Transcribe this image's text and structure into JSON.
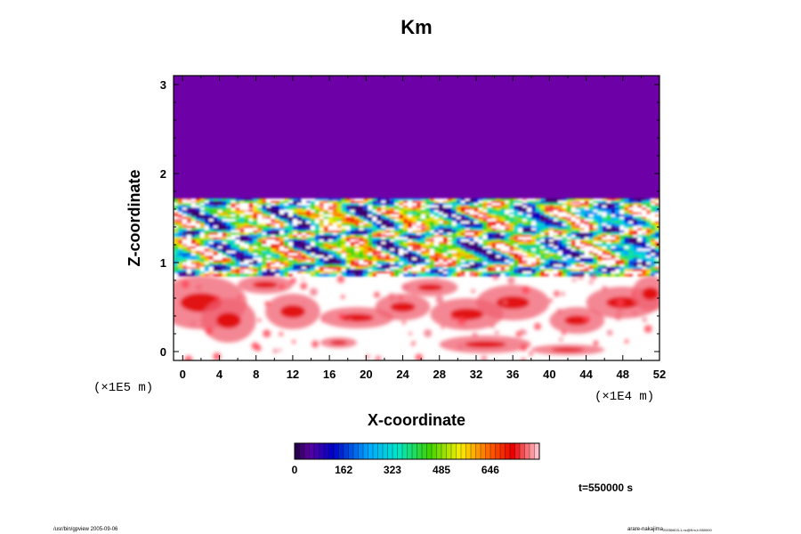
{
  "chart_data": {
    "type": "heatmap",
    "title": "Km",
    "xlabel": "X-coordinate",
    "ylabel": "Z-coordinate",
    "x_scale_label": "(×1E4 m)",
    "y_scale_label": "(×1E5 m)",
    "xlim": [
      -1,
      52
    ],
    "ylim": [
      -0.1,
      3.1
    ],
    "x_ticks": [
      0,
      4,
      8,
      12,
      16,
      20,
      24,
      28,
      32,
      36,
      40,
      44,
      48,
      52
    ],
    "x_tick_labels": [
      "0",
      "4",
      "8",
      "12",
      "16",
      "20",
      "24",
      "28",
      "32",
      "36",
      "40",
      "44",
      "48",
      "52"
    ],
    "y_ticks": [
      0,
      1,
      2,
      3
    ],
    "y_tick_labels": [
      "0",
      "1",
      "2",
      "3"
    ],
    "colorbar": {
      "min": 0,
      "max": 808,
      "ticks": [
        0,
        162,
        323,
        485,
        646
      ],
      "tick_labels": [
        "0",
        "162",
        "323",
        "485",
        "646"
      ],
      "colormap": "rainbow"
    },
    "regions": [
      {
        "name": "upper",
        "z_range": [
          1.72,
          3.1
        ],
        "value_desc": "uniform minimum (0)"
      },
      {
        "name": "turbulent_layer",
        "z_range": [
          0.85,
          1.72
        ],
        "value_desc": "highly variable 0-808"
      },
      {
        "name": "lower",
        "z_range": [
          -0.1,
          0.85
        ],
        "value_desc": "mostly white with scattered red patches (~650-808)"
      }
    ]
  },
  "annotations": {
    "time_label": "t=550000 s",
    "footer_left": "/usr/bin/gpview 2005-09-06",
    "footer_right_main": "arare-nakajima",
    "footer_right_sub": "20050603-1.nc@Km,t=550000"
  },
  "colors": {
    "top_region": "#6e00a8",
    "background": "#ffffff",
    "frame": "#000000"
  }
}
